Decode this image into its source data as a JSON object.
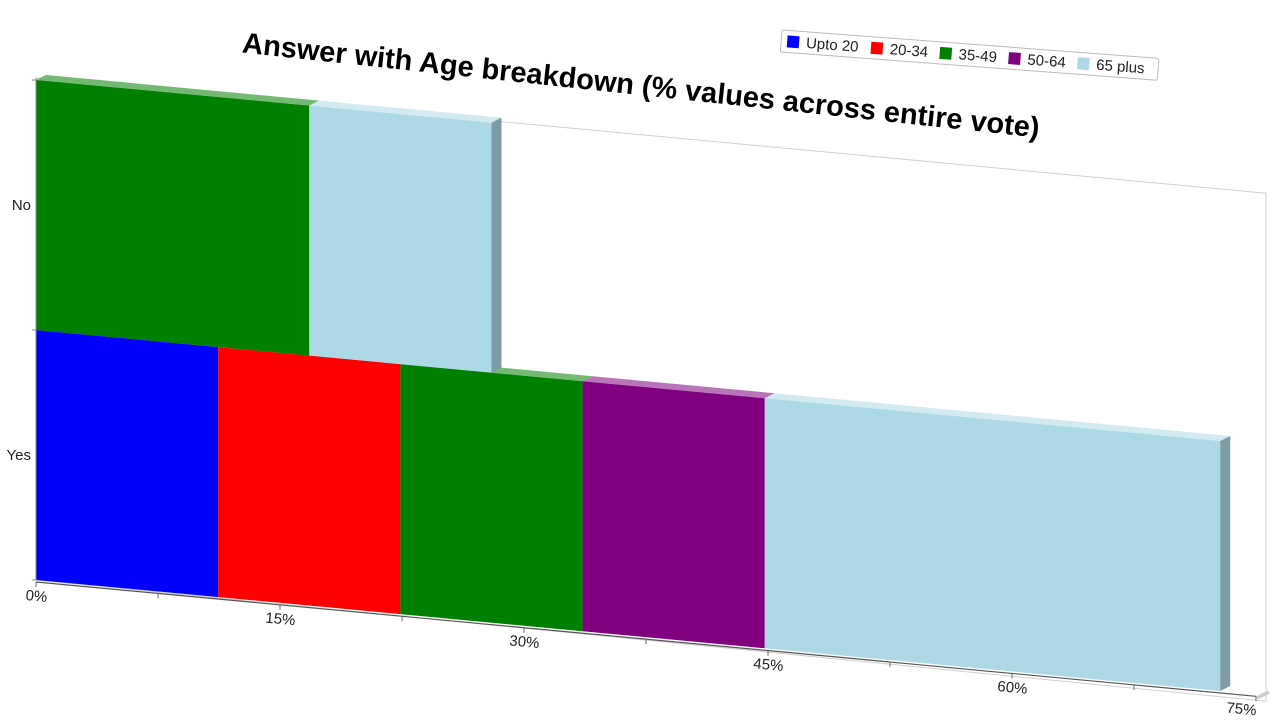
{
  "chart_data": {
    "type": "bar",
    "orientation": "horizontal",
    "stacked": true,
    "three_d": true,
    "title": "Answer with Age breakdown (% values across entire vote)",
    "categories": [
      "Yes",
      "No"
    ],
    "series": [
      {
        "name": "Upto 20",
        "color": "#0000ff",
        "values": [
          11.2,
          0
        ]
      },
      {
        "name": "20-34",
        "color": "#ff0000",
        "values": [
          11.2,
          0
        ]
      },
      {
        "name": "35-49",
        "color": "#008000",
        "values": [
          11.2,
          16.8
        ]
      },
      {
        "name": "50-64",
        "color": "#800080",
        "values": [
          11.2,
          0
        ]
      },
      {
        "name": "65 plus",
        "color": "#add8e6",
        "values": [
          28.0,
          11.2
        ]
      }
    ],
    "xlim": [
      0,
      75
    ],
    "xticks": [
      "0%",
      "15%",
      "30%",
      "45%",
      "60%",
      "75%"
    ],
    "legend_position": "top-right",
    "grid": false
  }
}
